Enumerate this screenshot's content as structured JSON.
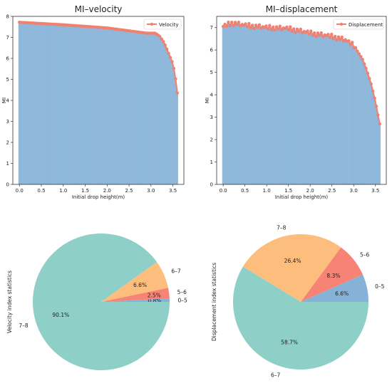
{
  "chart_data": [
    {
      "type": "bar",
      "title": "MI–velocity",
      "xlabel": "Initial drop height(m)",
      "ylabel": "MI",
      "xlim": [
        -0.15,
        3.75
      ],
      "ylim": [
        0,
        8
      ],
      "xticks": [
        "0.0",
        "0.5",
        "1.0",
        "1.5",
        "2.0",
        "2.5",
        "3.0",
        "3.5"
      ],
      "yticks": [
        "0",
        "1",
        "2",
        "3",
        "4",
        "5",
        "6",
        "7",
        "8"
      ],
      "legend": {
        "position": "top-right",
        "entries": [
          "Velocity"
        ]
      },
      "overlay": "line with markers over bars",
      "bar_color": "#8fb9dd",
      "line_color": "#f08070",
      "anchors": [
        [
          0.0,
          7.72
        ],
        [
          1.0,
          7.6
        ],
        [
          2.0,
          7.45
        ],
        [
          2.9,
          7.2
        ],
        [
          3.1,
          7.2
        ],
        [
          3.2,
          7.05
        ],
        [
          3.3,
          6.75
        ],
        [
          3.4,
          6.25
        ],
        [
          3.5,
          5.75
        ],
        [
          3.55,
          5.2
        ],
        [
          3.6,
          4.35
        ]
      ]
    },
    {
      "type": "bar",
      "title": "MI–displacement",
      "xlabel": "Initial drop height(m)",
      "ylabel": "MI",
      "xlim": [
        -0.15,
        3.75
      ],
      "ylim": [
        0,
        7.5
      ],
      "xticks": [
        "0.0",
        "0.5",
        "1.0",
        "1.5",
        "2.0",
        "2.5",
        "3.0",
        "3.5"
      ],
      "yticks": [
        "0",
        "1",
        "2",
        "3",
        "4",
        "5",
        "6",
        "7"
      ],
      "legend": {
        "position": "top-right",
        "entries": [
          "Displacement"
        ]
      },
      "overlay": "line with markers over bars",
      "bar_color": "#8fb9dd",
      "line_color": "#f08070",
      "anchors": [
        [
          0.0,
          7.05
        ],
        [
          0.2,
          7.2
        ],
        [
          0.5,
          7.1
        ],
        [
          1.0,
          7.0
        ],
        [
          1.5,
          6.95
        ],
        [
          2.0,
          6.75
        ],
        [
          2.5,
          6.6
        ],
        [
          2.8,
          6.45
        ],
        [
          3.0,
          6.2
        ],
        [
          3.2,
          5.6
        ],
        [
          3.3,
          5.1
        ],
        [
          3.4,
          4.5
        ],
        [
          3.5,
          3.7
        ],
        [
          3.55,
          3.2
        ],
        [
          3.6,
          2.7
        ]
      ]
    },
    {
      "type": "pie",
      "ylabel": "Velocity index statistics",
      "slices": [
        {
          "label": "0–5",
          "value": 0.8,
          "pct": "0.8%",
          "color": "#85b2d6"
        },
        {
          "label": "5–6",
          "value": 2.5,
          "pct": "2.5%",
          "color": "#f68375"
        },
        {
          "label": "6–7",
          "value": 6.6,
          "pct": "6.6%",
          "color": "#fdbd7c"
        },
        {
          "label": "7–8",
          "value": 90.1,
          "pct": "90.1%",
          "color": "#8ecfc7"
        }
      ]
    },
    {
      "type": "pie",
      "ylabel": "Displacement index statistics",
      "slices": [
        {
          "label": "0–5",
          "value": 6.6,
          "pct": "6.6%",
          "color": "#85b2d6"
        },
        {
          "label": "5–6",
          "value": 8.3,
          "pct": "8.3%",
          "color": "#f68375"
        },
        {
          "label": "7–8",
          "value": 26.4,
          "pct": "26.4%",
          "color": "#fdbd7c"
        },
        {
          "label": "6–7",
          "value": 58.7,
          "pct": "58.7%",
          "color": "#8ecfc7"
        }
      ]
    }
  ]
}
